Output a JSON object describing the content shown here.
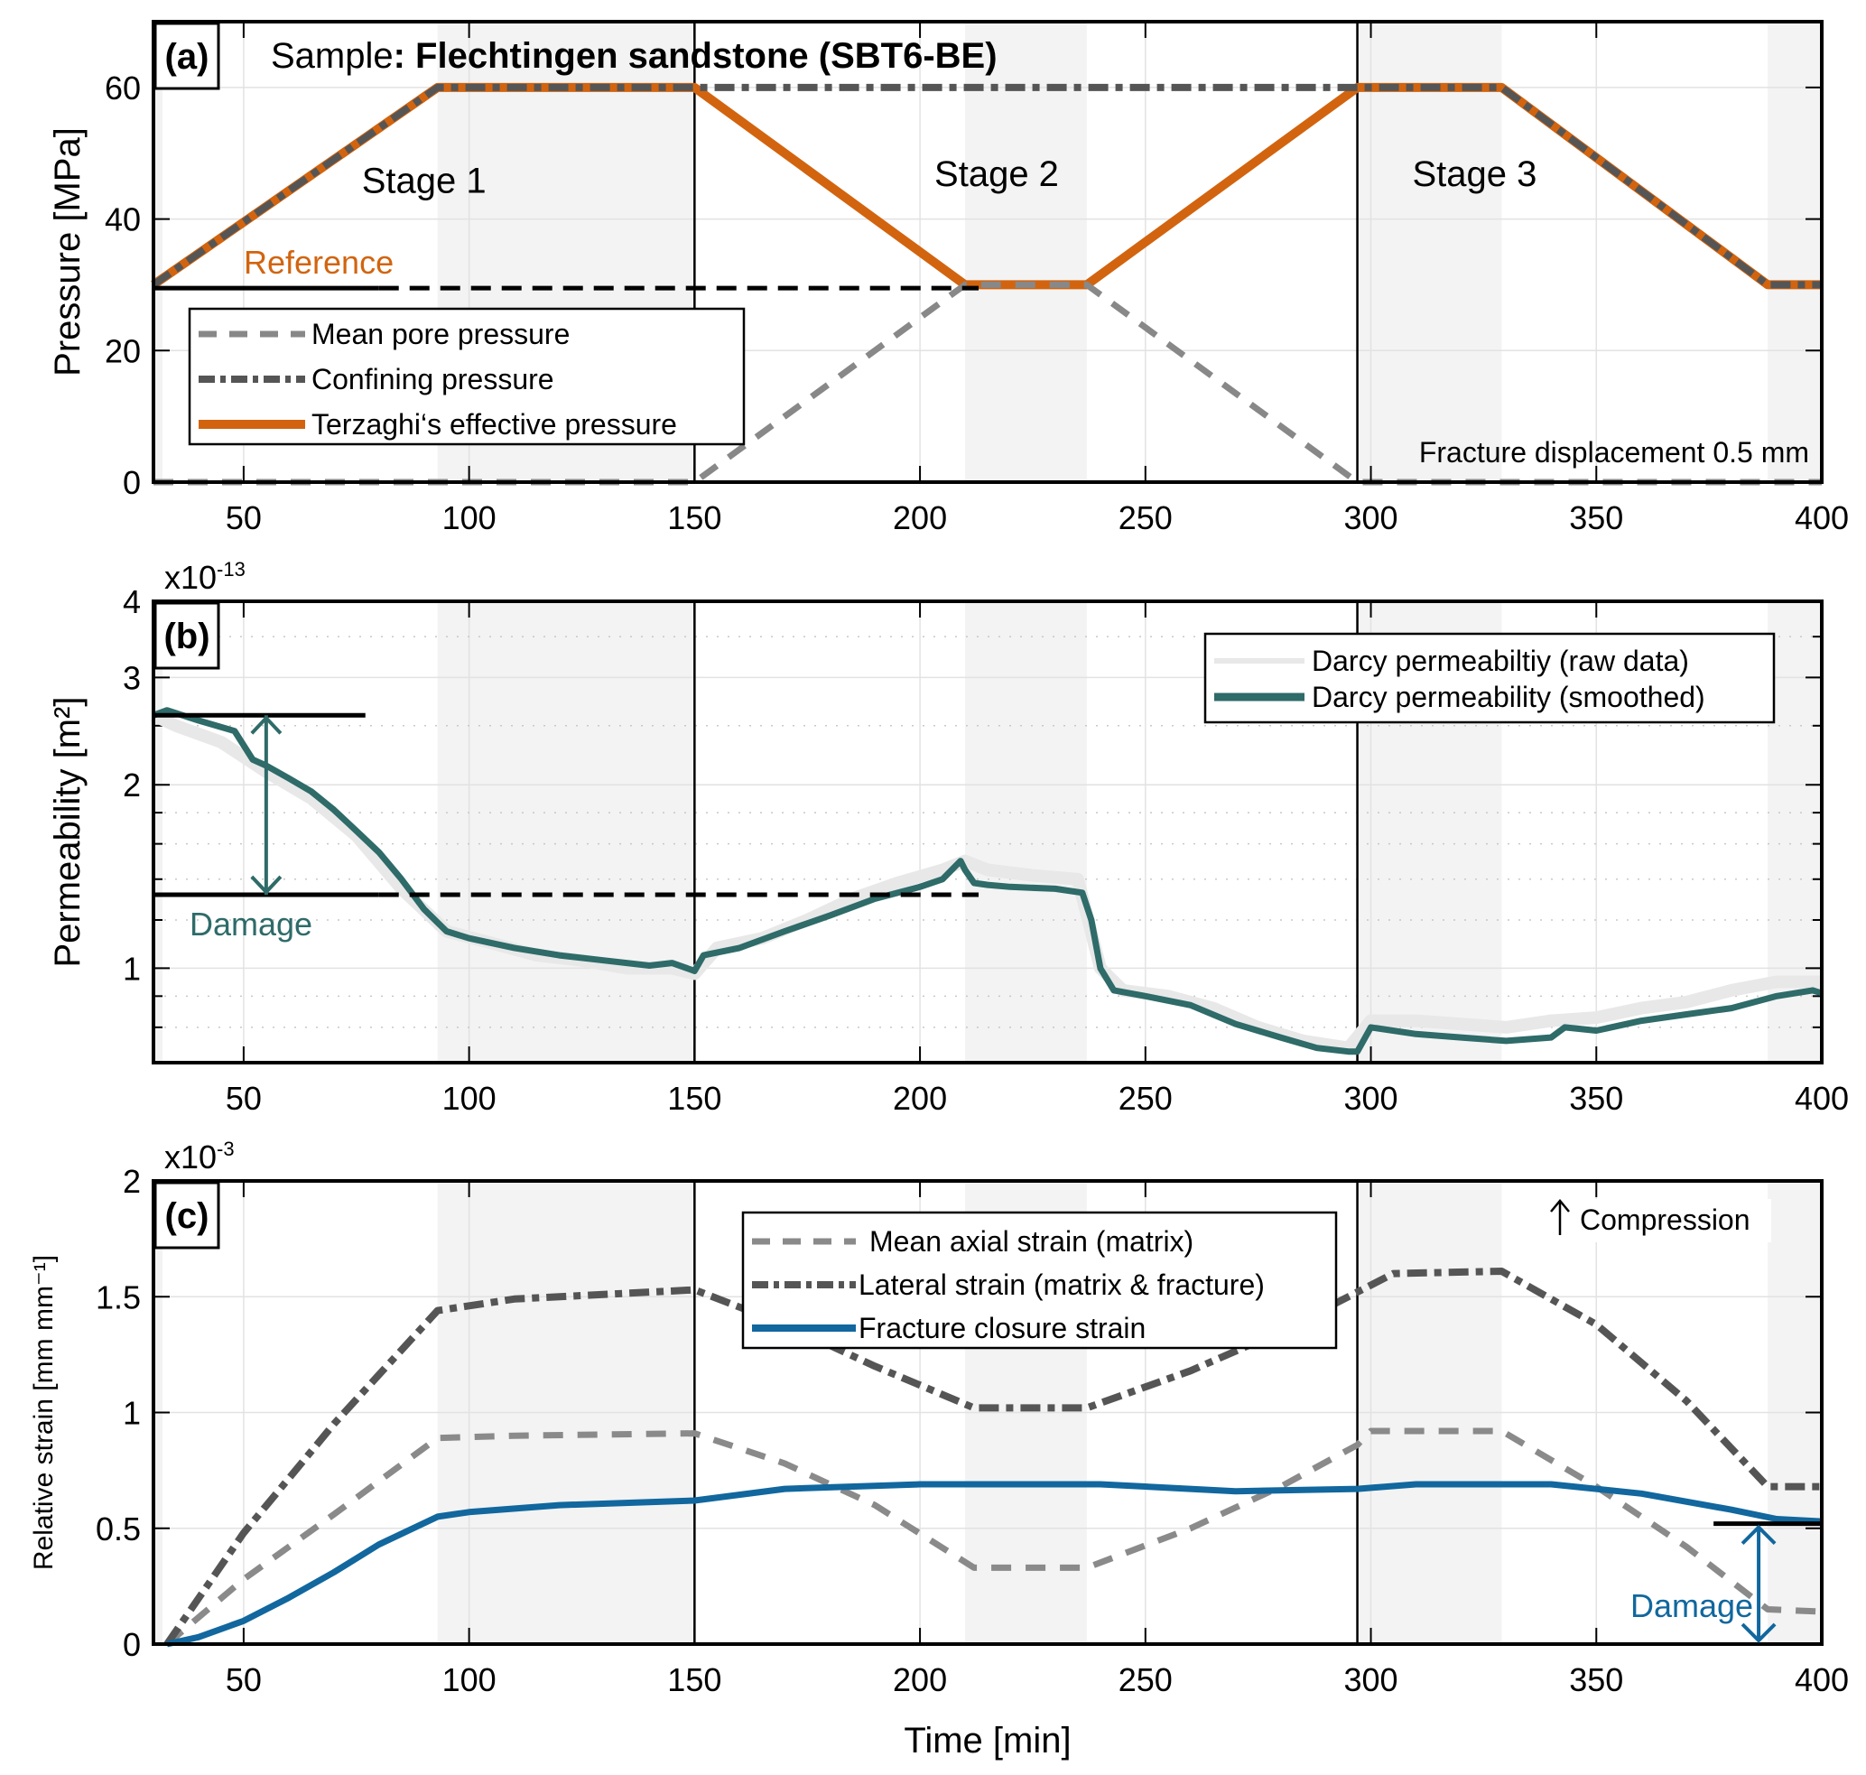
{
  "colors": {
    "effective": "#D2640F",
    "confining": "#555555",
    "pore": "#888888",
    "perm_smooth": "#2E6B69",
    "perm_raw": "#E8E8E8",
    "axial": "#8A8A8A",
    "lateral": "#555555",
    "closure": "#11679E",
    "shade": "#F3F3F3",
    "damage_b": "#2E6B69",
    "damage_c": "#11679E"
  },
  "chart_data": [
    {
      "panel": "(a)",
      "type": "line",
      "title": "Sample: Flechtingen sandstone (SBT6-BE)",
      "title_prefix": "Sample",
      "title_sample": ": Flechtingen sandstone (SBT6-BE)",
      "xlabel": "",
      "ylabel": "Pressure [MPa]",
      "xlim": [
        30,
        400
      ],
      "ylim": [
        0,
        70
      ],
      "xticks": [
        50,
        100,
        150,
        200,
        250,
        300,
        350,
        400
      ],
      "yticks": [
        0,
        20,
        40,
        60
      ],
      "grid": true,
      "legend_position": "lower-left",
      "series": [
        {
          "name": "Mean pore pressure",
          "style": "dashed",
          "x": [
            30,
            150,
            210,
            237,
            297,
            400
          ],
          "y": [
            0,
            0,
            30,
            30,
            0,
            0
          ]
        },
        {
          "name": "Confining pressure",
          "style": "dashdot",
          "x": [
            30,
            93,
            329,
            388,
            400
          ],
          "y": [
            30,
            60,
            60,
            30,
            30
          ]
        },
        {
          "name": "Terzaghi‘s effective pressure",
          "style": "solid",
          "x": [
            30,
            93,
            150,
            210,
            237,
            297,
            329,
            388,
            400
          ],
          "y": [
            30,
            60,
            60,
            30,
            30,
            60,
            60,
            30,
            30
          ]
        }
      ],
      "annotations": {
        "stages": [
          {
            "label": "Stage 1",
            "x": 90,
            "y": 44
          },
          {
            "label": "Stage 2",
            "x": 217,
            "y": 45
          },
          {
            "label": "Stage 3",
            "x": 323,
            "y": 45
          }
        ],
        "reference_label": "Reference",
        "reference_value": 29.5,
        "reference_solid_to": 80,
        "reference_dashed_to": 213,
        "fracture_note": "Fracture displacement 0.5 mm"
      },
      "shaded_x": [
        [
          30,
          32
        ],
        [
          93,
          150
        ],
        [
          210,
          237
        ],
        [
          297,
          329
        ],
        [
          388,
          400
        ]
      ],
      "stage_dividers": [
        150,
        297
      ]
    },
    {
      "panel": "(b)",
      "type": "line",
      "xlabel": "",
      "ylabel": "Permeability [m²]",
      "yscale": "log",
      "y_multiplier": "x10",
      "y_exponent": "-13",
      "xlim": [
        30,
        400
      ],
      "ylim": [
        0.7,
        4
      ],
      "xticks": [
        50,
        100,
        150,
        200,
        250,
        300,
        350,
        400
      ],
      "yticks": [
        1,
        2,
        3,
        4
      ],
      "grid": true,
      "legend_position": "top-right",
      "series": [
        {
          "name": "Darcy permeabiltiy (raw data)",
          "style": "solid-light",
          "x": [
            30,
            35,
            45,
            55,
            65,
            75,
            85,
            95,
            105,
            115,
            125,
            135,
            145,
            150,
            155,
            165,
            175,
            185,
            195,
            205,
            210,
            215,
            225,
            235,
            240,
            245,
            255,
            265,
            275,
            285,
            295,
            300,
            310,
            320,
            330,
            340,
            350,
            360,
            370,
            380,
            390,
            400
          ],
          "y": [
            2.6,
            2.5,
            2.35,
            2.1,
            1.9,
            1.65,
            1.35,
            1.15,
            1.1,
            1.05,
            1.03,
            1.0,
            1.0,
            0.98,
            1.08,
            1.12,
            1.2,
            1.3,
            1.38,
            1.45,
            1.5,
            1.45,
            1.42,
            1.4,
            1.0,
            0.92,
            0.9,
            0.86,
            0.8,
            0.76,
            0.74,
            0.82,
            0.82,
            0.81,
            0.8,
            0.82,
            0.83,
            0.86,
            0.88,
            0.92,
            0.95,
            0.95
          ]
        },
        {
          "name": "Darcy permeability (smoothed)",
          "style": "solid",
          "x": [
            30,
            33,
            40,
            48,
            52,
            55,
            60,
            65,
            70,
            75,
            80,
            85,
            90,
            95,
            100,
            110,
            120,
            130,
            140,
            145,
            150,
            152,
            160,
            170,
            180,
            190,
            200,
            205,
            209,
            210,
            212,
            215,
            220,
            230,
            236,
            238,
            240,
            243,
            250,
            260,
            270,
            280,
            288,
            295,
            297,
            300,
            310,
            320,
            330,
            340,
            343,
            350,
            360,
            370,
            380,
            390,
            398,
            400
          ],
          "y": [
            2.6,
            2.65,
            2.55,
            2.45,
            2.2,
            2.15,
            2.05,
            1.95,
            1.82,
            1.68,
            1.55,
            1.4,
            1.25,
            1.15,
            1.12,
            1.08,
            1.05,
            1.03,
            1.01,
            1.02,
            0.99,
            1.05,
            1.08,
            1.15,
            1.22,
            1.3,
            1.36,
            1.4,
            1.5,
            1.45,
            1.38,
            1.37,
            1.36,
            1.35,
            1.33,
            1.2,
            1.0,
            0.92,
            0.9,
            0.87,
            0.81,
            0.77,
            0.74,
            0.73,
            0.73,
            0.8,
            0.78,
            0.77,
            0.76,
            0.77,
            0.8,
            0.79,
            0.82,
            0.84,
            0.86,
            0.9,
            0.92,
            0.91
          ]
        }
      ],
      "annotations": {
        "damage_label": "Damage",
        "damage_upper": 2.6,
        "damage_lower": 1.32,
        "damage_x": 55,
        "upper_line_to": 77,
        "lower_solid_to": 80,
        "lower_dashed_to": 213
      },
      "shaded_x": [
        [
          30,
          32
        ],
        [
          93,
          150
        ],
        [
          210,
          237
        ],
        [
          297,
          329
        ],
        [
          388,
          400
        ]
      ],
      "stage_dividers": [
        150,
        297
      ]
    },
    {
      "panel": "(c)",
      "type": "line",
      "xlabel": "Time [min]",
      "ylabel": "Relative strain [mm mm⁻¹]",
      "y_multiplier": "x10",
      "y_exponent": "-3",
      "xlim": [
        30,
        400
      ],
      "ylim": [
        0,
        2
      ],
      "xticks": [
        50,
        100,
        150,
        200,
        250,
        300,
        350,
        400
      ],
      "yticks": [
        0,
        0.5,
        1,
        1.5,
        2
      ],
      "ytick_labels": [
        "0",
        "0.5",
        "1",
        "1.5",
        "2"
      ],
      "grid": true,
      "legend_position": "top-center",
      "series": [
        {
          "name": "Mean axial strain (matrix)",
          "style": "dashed",
          "x": [
            33,
            50,
            70,
            93,
            110,
            150,
            170,
            190,
            212,
            237,
            260,
            280,
            297,
            300,
            329,
            350,
            370,
            388,
            400
          ],
          "y": [
            0,
            0.28,
            0.56,
            0.89,
            0.9,
            0.91,
            0.78,
            0.6,
            0.33,
            0.33,
            0.5,
            0.68,
            0.86,
            0.92,
            0.92,
            0.68,
            0.42,
            0.15,
            0.14
          ]
        },
        {
          "name": "Lateral strain (matrix & fracture)",
          "style": "dashdot",
          "x": [
            33,
            50,
            70,
            93,
            110,
            150,
            170,
            190,
            212,
            237,
            260,
            280,
            297,
            305,
            329,
            350,
            370,
            388,
            400
          ],
          "y": [
            0,
            0.48,
            0.95,
            1.44,
            1.49,
            1.53,
            1.38,
            1.2,
            1.02,
            1.02,
            1.18,
            1.35,
            1.52,
            1.6,
            1.61,
            1.38,
            1.05,
            0.68,
            0.68
          ]
        },
        {
          "name": "Fracture closure strain",
          "style": "solid",
          "x": [
            33,
            40,
            50,
            60,
            70,
            80,
            93,
            100,
            120,
            150,
            170,
            200,
            240,
            270,
            297,
            310,
            340,
            360,
            380,
            390,
            400
          ],
          "y": [
            0,
            0.03,
            0.1,
            0.2,
            0.31,
            0.43,
            0.55,
            0.57,
            0.6,
            0.62,
            0.67,
            0.69,
            0.69,
            0.66,
            0.67,
            0.69,
            0.69,
            0.65,
            0.58,
            0.54,
            0.53
          ]
        }
      ],
      "annotations": {
        "compression_label": "Compression",
        "damage_label": "Damage",
        "damage_upper": 0.52,
        "damage_lower": 0.0,
        "damage_x": 386,
        "damage_line_from": 376
      },
      "shaded_x": [
        [
          30,
          32
        ],
        [
          93,
          150
        ],
        [
          210,
          237
        ],
        [
          297,
          329
        ],
        [
          388,
          400
        ]
      ],
      "stage_dividers": [
        150,
        297
      ]
    }
  ]
}
